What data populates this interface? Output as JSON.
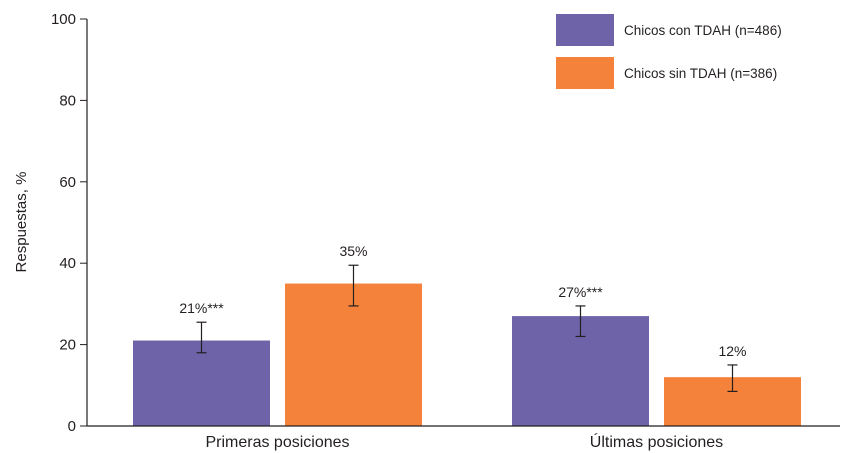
{
  "chart_data": {
    "type": "bar",
    "categories": [
      "Primeras posiciones",
      "Últimas posiciones"
    ],
    "series": [
      {
        "name": "Chicos con TDAH (n=486)",
        "color": "#6e63a8",
        "values": [
          21,
          27
        ],
        "error_low": [
          18,
          22
        ],
        "error_high": [
          25.5,
          29.5
        ],
        "labels": [
          "21%***",
          "27%***"
        ]
      },
      {
        "name": "Chicos sin TDAH (n=386)",
        "color": "#f5823a",
        "values": [
          35,
          12
        ],
        "error_low": [
          29.5,
          8.5
        ],
        "error_high": [
          39.5,
          15
        ],
        "labels": [
          "35%",
          "12%"
        ]
      }
    ],
    "title": "",
    "xlabel": "",
    "ylabel": "Respuestas, %",
    "ylim": [
      0,
      100
    ],
    "yticks": [
      0,
      20,
      40,
      60,
      80,
      100
    ],
    "grid": false,
    "legend_position": "top-right"
  }
}
